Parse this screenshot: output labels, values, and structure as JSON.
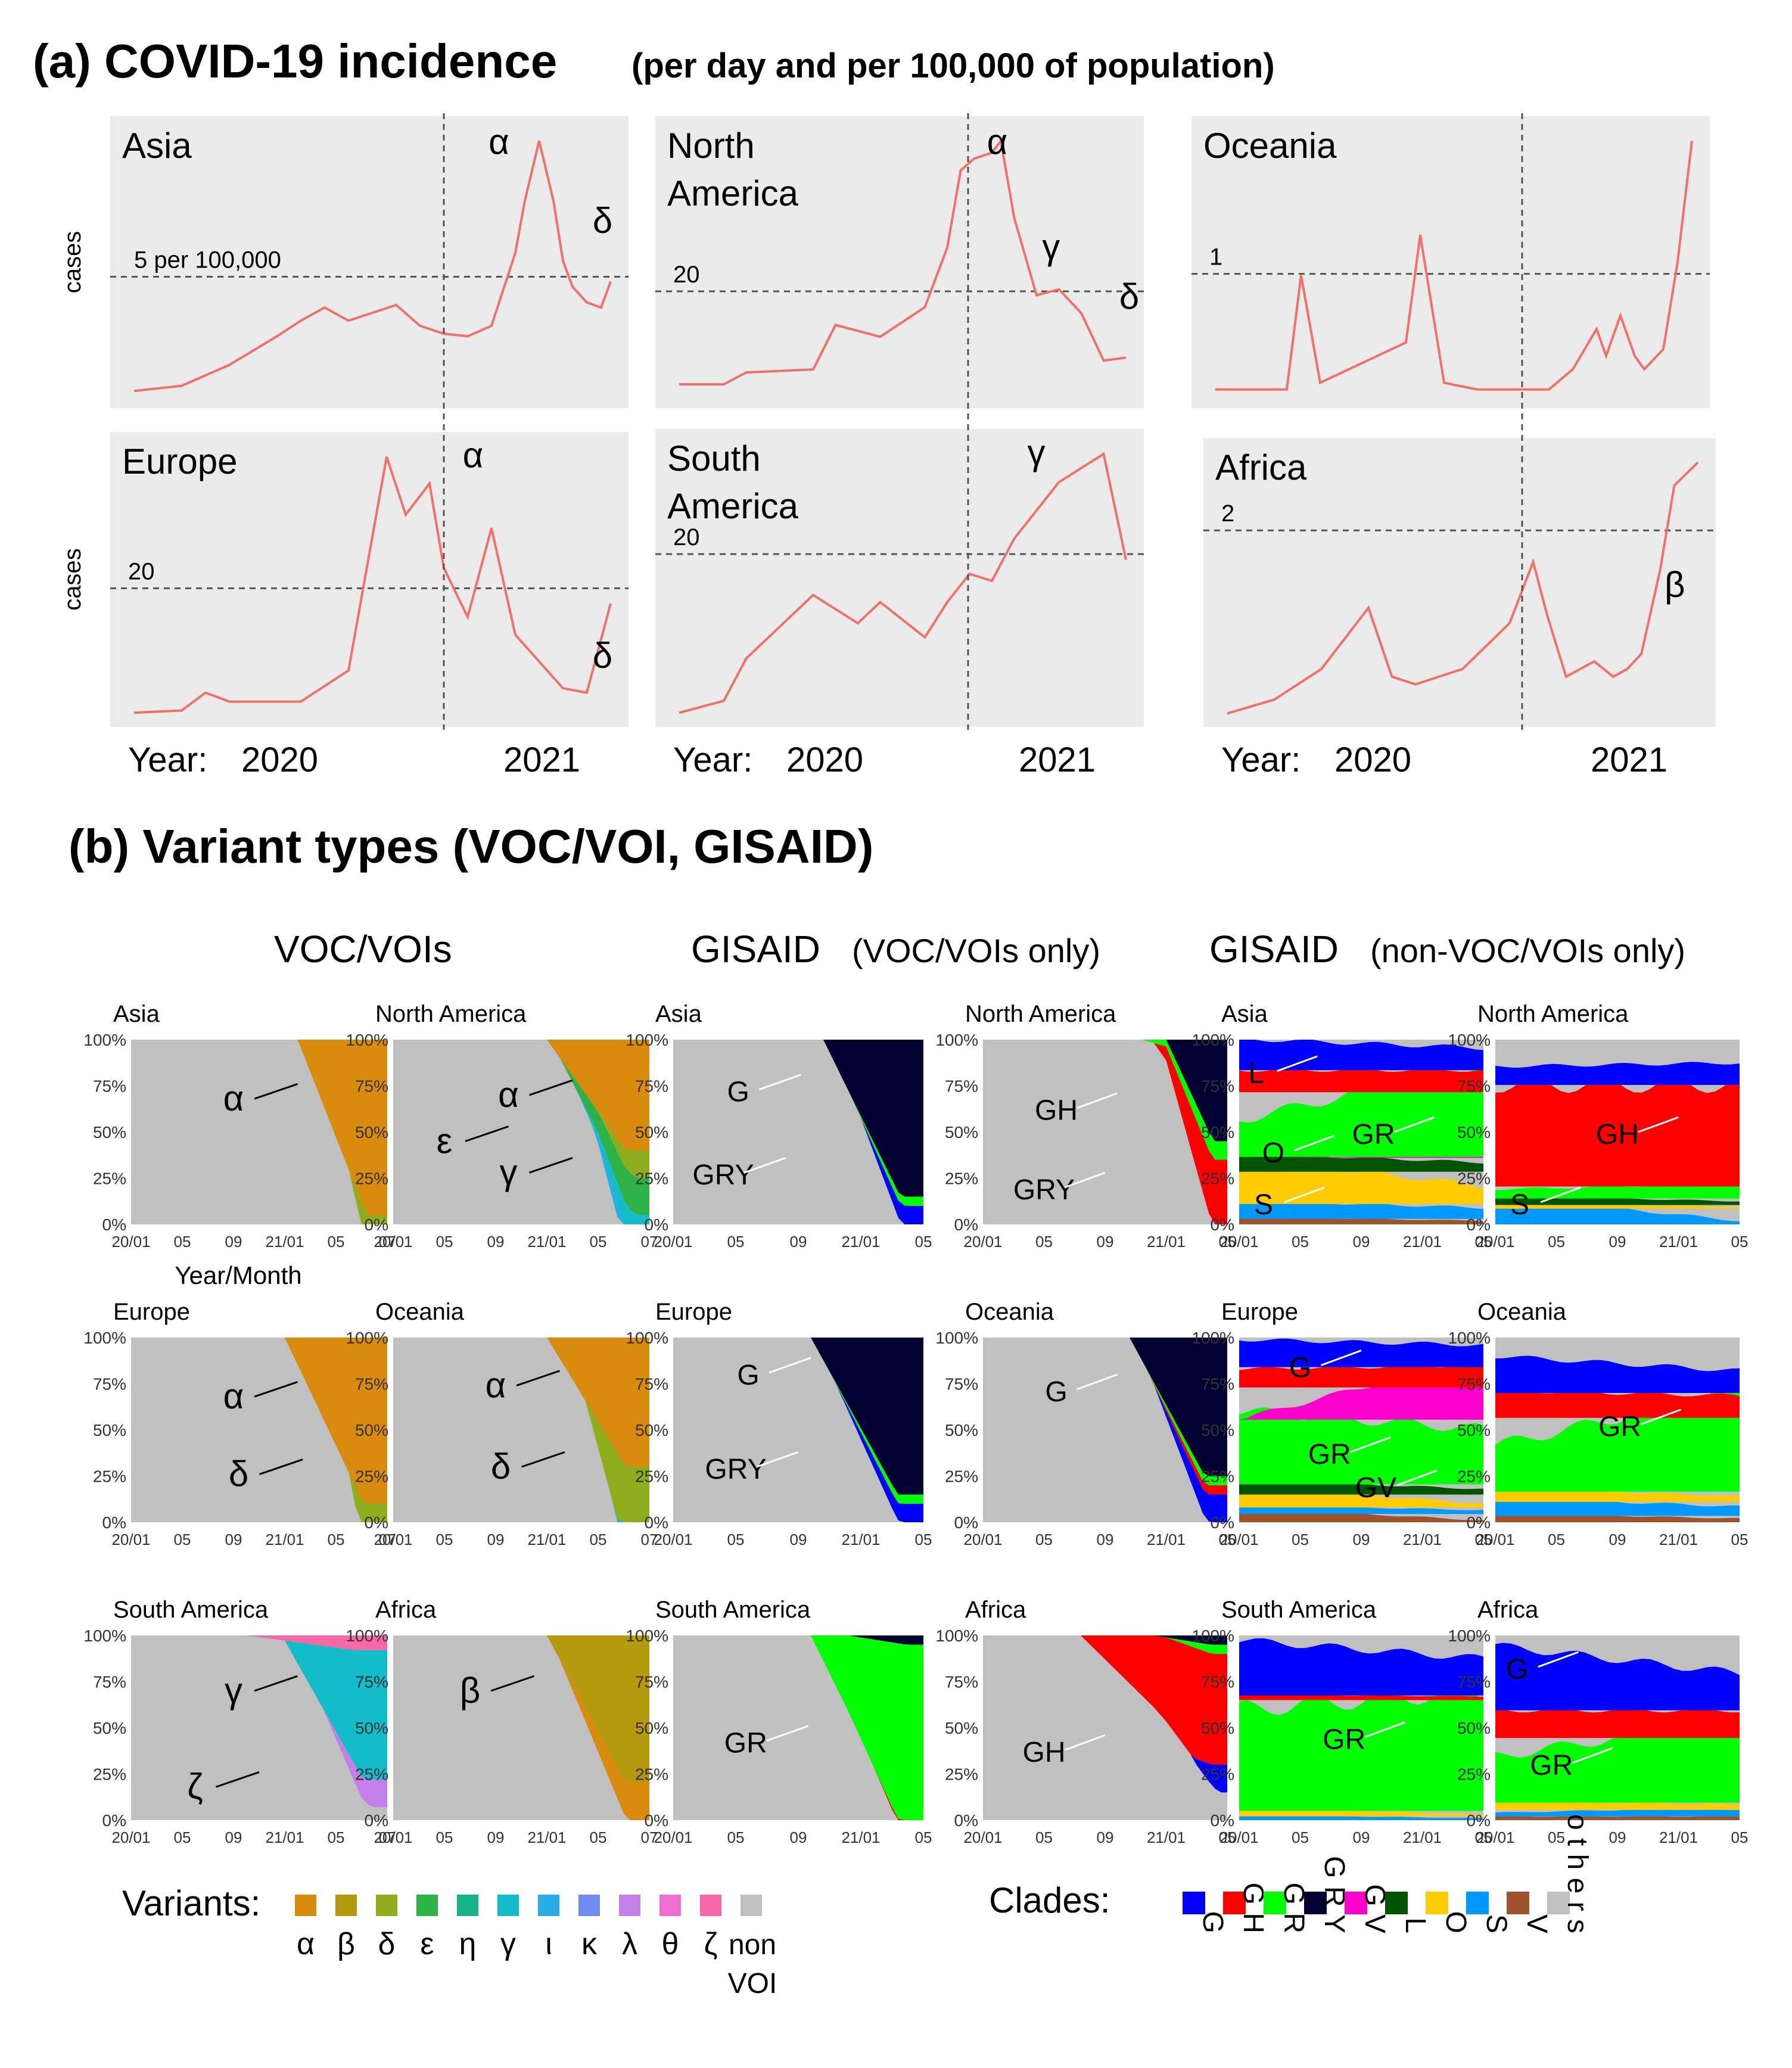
{
  "chart_data": {
    "type": "composite",
    "title_a": "(a) COVID-19 incidence",
    "title_a_sub": "(per day and per 100,000 of population)",
    "title_b": "(b) Variant types (VOC/VOI, GISAID)",
    "incidence": {
      "type": "line",
      "ylabel": "cases",
      "year_label": "Year:",
      "year_ticks": [
        "2020",
        "2021"
      ],
      "panels": [
        {
          "region": "Asia",
          "ref_label": "5 per 100,000",
          "ref_value": 5,
          "variant_labels": [
            "α",
            "δ"
          ],
          "x": [
            0,
            0.1,
            0.2,
            0.3,
            0.35,
            0.4,
            0.45,
            0.5,
            0.55,
            0.6,
            0.65,
            0.7,
            0.75,
            0.8,
            0.82,
            0.85,
            0.88,
            0.9,
            0.92,
            0.95,
            0.98,
            1
          ],
          "y": [
            0.2,
            0.4,
            1.2,
            2.3,
            2.9,
            3.4,
            2.9,
            3.2,
            3.5,
            2.7,
            2.4,
            2.3,
            2.7,
            5.5,
            7.5,
            9.8,
            7.5,
            5.2,
            4.2,
            3.6,
            3.4,
            4.4
          ]
        },
        {
          "region": "North America",
          "ref_label": "20",
          "ref_value": 20,
          "variant_labels": [
            "α",
            "γ",
            "δ"
          ],
          "x": [
            0,
            0.1,
            0.15,
            0.3,
            0.35,
            0.45,
            0.55,
            0.6,
            0.63,
            0.66,
            0.7,
            0.72,
            0.75,
            0.8,
            0.85,
            0.9,
            0.95,
            1
          ],
          "y": [
            2,
            2,
            4,
            4.5,
            12,
            10,
            15,
            25,
            38,
            40,
            41,
            43,
            30,
            17,
            18,
            14,
            6,
            6.5
          ]
        },
        {
          "region": "Oceania",
          "ref_label": "1",
          "ref_value": 1,
          "variant_labels": [],
          "x": [
            0,
            0.15,
            0.18,
            0.22,
            0.4,
            0.43,
            0.48,
            0.55,
            0.7,
            0.75,
            0.8,
            0.82,
            0.85,
            0.88,
            0.9,
            0.94,
            0.97,
            1
          ],
          "y": [
            0.05,
            0.05,
            0.9,
            0.1,
            0.4,
            1.2,
            0.1,
            0.05,
            0.05,
            0.2,
            0.5,
            0.3,
            0.6,
            0.3,
            0.2,
            0.35,
            1.0,
            1.9
          ]
        },
        {
          "region": "Europe",
          "ref_label": "20",
          "ref_value": 20,
          "variant_labels": [
            "α",
            "δ"
          ],
          "x": [
            0,
            0.1,
            0.15,
            0.2,
            0.35,
            0.45,
            0.5,
            0.53,
            0.57,
            0.62,
            0.65,
            0.7,
            0.75,
            0.8,
            0.9,
            0.95,
            1
          ],
          "y": [
            0.5,
            1,
            5,
            3,
            3,
            10,
            40,
            58,
            45,
            52,
            33,
            22,
            42,
            18,
            6,
            5,
            25
          ]
        },
        {
          "region": "South America",
          "ref_label": "20",
          "ref_value": 20,
          "variant_labels": [
            "γ"
          ],
          "x": [
            0,
            0.1,
            0.15,
            0.25,
            0.3,
            0.4,
            0.45,
            0.55,
            0.6,
            0.65,
            0.7,
            0.75,
            0.8,
            0.85,
            0.9,
            0.95,
            1
          ],
          "y": [
            0.3,
            2,
            8,
            14,
            17,
            13,
            16,
            11,
            16,
            20,
            19,
            25,
            29,
            33,
            35,
            37,
            22
          ]
        },
        {
          "region": "Africa",
          "ref_label": "2",
          "ref_value": 2,
          "variant_labels": [
            "β"
          ],
          "x": [
            0,
            0.1,
            0.2,
            0.3,
            0.35,
            0.4,
            0.5,
            0.55,
            0.6,
            0.65,
            0.68,
            0.72,
            0.78,
            0.82,
            0.85,
            0.88,
            0.92,
            0.95,
            1
          ],
          "y": [
            0.02,
            0.2,
            0.6,
            1.4,
            0.5,
            0.4,
            0.6,
            0.9,
            1.2,
            2.0,
            1.3,
            0.5,
            0.7,
            0.5,
            0.6,
            0.8,
            1.9,
            3.0,
            3.3
          ]
        }
      ]
    },
    "variants": {
      "type": "area",
      "group_titles": [
        "VOC/VOIs",
        "GISAID",
        "(VOC/VOIs only)",
        "GISAID",
        "(non-VOC/VOIs only)"
      ],
      "y_ticks": [
        "100%",
        "75%",
        "50%",
        "25%",
        "0%"
      ],
      "x_ticks_7": [
        "20/01",
        "05",
        "09",
        "21/01",
        "05",
        "07"
      ],
      "x_ticks_6": [
        "20/01",
        "05",
        "09",
        "21/01",
        "05"
      ],
      "xlabel": "Year/Month",
      "row_regions": [
        [
          "Asia",
          "North America"
        ],
        [
          "Europe",
          "Oceania"
        ],
        [
          "South America",
          "Africa"
        ]
      ],
      "voc_panels": [
        {
          "region": "Asia",
          "labels": [
            "α"
          ],
          "layers": [
            {
              "key": "alpha",
              "start": 0.65,
              "grow": 0.95
            },
            {
              "key": "delta",
              "start": 0.85,
              "grow": 0.3
            },
            {
              "key": "iota",
              "start": 0.88,
              "grow": 0.1
            }
          ]
        },
        {
          "region": "North America",
          "labels": [
            "α",
            "ε",
            "γ"
          ],
          "layers": [
            {
              "key": "alpha",
              "start": 0.6,
              "grow": 0.6
            },
            {
              "key": "delta",
              "start": 0.8,
              "grow": 0.15
            },
            {
              "key": "eps",
              "start": 0.65,
              "grow": 0.2
            },
            {
              "key": "gamma",
              "start": 0.78,
              "grow": 0.2
            },
            {
              "key": "iota",
              "start": 0.72,
              "grow": 0.1
            }
          ]
        },
        {
          "region": "Europe",
          "labels": [
            "α",
            "δ"
          ],
          "layers": [
            {
              "key": "alpha",
              "start": 0.6,
              "grow": 0.9
            },
            {
              "key": "delta",
              "start": 0.85,
              "grow": 0.5
            }
          ]
        },
        {
          "region": "Oceania",
          "labels": [
            "α",
            "δ"
          ],
          "layers": [
            {
              "key": "alpha",
              "start": 0.6,
              "grow": 0.7
            },
            {
              "key": "delta",
              "start": 0.75,
              "grow": 0.55
            },
            {
              "key": "iota",
              "start": 0.85,
              "grow": 0.15
            }
          ]
        },
        {
          "region": "South America",
          "labels": [
            "γ",
            "ζ"
          ],
          "layers": [
            {
              "key": "zeta",
              "start": 0.45,
              "grow": 0.08
            },
            {
              "key": "gamma",
              "start": 0.6,
              "grow": 0.7
            },
            {
              "key": "lambda",
              "start": 0.75,
              "grow": 0.15
            }
          ]
        },
        {
          "region": "Africa",
          "labels": [
            "β"
          ],
          "layers": [
            {
              "key": "beta",
              "start": 0.6,
              "grow": 0.8
            },
            {
              "key": "alpha",
              "start": 0.65,
              "grow": 0.2
            }
          ]
        }
      ],
      "gisaid_voc_panels": [
        {
          "region": "Asia",
          "labels": [
            "G",
            "GRY"
          ],
          "layers": [
            {
              "key": "GRY",
              "start": 0.6,
              "grow": 0.85
            },
            {
              "key": "GR",
              "start": 0.7,
              "grow": 0.05
            },
            {
              "key": "G",
              "start": 0.75,
              "grow": 0.12
            }
          ]
        },
        {
          "region": "North America",
          "labels": [
            "GH",
            "GRY"
          ],
          "layers": [
            {
              "key": "GRY",
              "start": 0.75,
              "grow": 0.55
            },
            {
              "key": "GR",
              "start": 0.65,
              "grow": 0.1
            },
            {
              "key": "GH",
              "start": 0.7,
              "grow": 0.35
            }
          ]
        },
        {
          "region": "Europe",
          "labels": [
            "G",
            "GRY"
          ],
          "layers": [
            {
              "key": "GRY",
              "start": 0.55,
              "grow": 0.85
            },
            {
              "key": "GR",
              "start": 0.62,
              "grow": 0.05
            },
            {
              "key": "G",
              "start": 0.65,
              "grow": 0.1
            }
          ]
        },
        {
          "region": "Oceania",
          "labels": [
            "G"
          ],
          "layers": [
            {
              "key": "GRY",
              "start": 0.6,
              "grow": 0.75
            },
            {
              "key": "GR",
              "start": 0.65,
              "grow": 0.05
            },
            {
              "key": "GH",
              "start": 0.68,
              "grow": 0.05
            },
            {
              "key": "G",
              "start": 0.7,
              "grow": 0.15
            }
          ]
        },
        {
          "region": "South America",
          "labels": [
            "GR"
          ],
          "layers": [
            {
              "key": "GRY",
              "start": 0.7,
              "grow": 0.05
            },
            {
              "key": "GR",
              "start": 0.55,
              "grow": 0.95
            },
            {
              "key": "GH",
              "start": 0.8,
              "grow": 0.03
            }
          ]
        },
        {
          "region": "Africa",
          "labels": [
            "GH"
          ],
          "layers": [
            {
              "key": "GRY",
              "start": 0.7,
              "grow": 0.05
            },
            {
              "key": "GR",
              "start": 0.75,
              "grow": 0.05
            },
            {
              "key": "GH",
              "start": 0.4,
              "grow": 0.6
            },
            {
              "key": "G",
              "start": 0.85,
              "grow": 0.15
            }
          ]
        }
      ],
      "gisaid_nonvoc_panels": [
        {
          "region": "Asia",
          "labels": [
            "L",
            "O",
            "S",
            "GR"
          ],
          "bands": [
            [
              "V",
              0.04,
              0.02
            ],
            [
              "S",
              0.1,
              0.06
            ],
            [
              "O",
              0.25,
              0.1
            ],
            [
              "L",
              0.1,
              0.05
            ],
            [
              "GV",
              0.0,
              0.01
            ],
            [
              "GR",
              0.2,
              0.5
            ],
            [
              "GH",
              0.12,
              0.12
            ],
            [
              "G",
              0.17,
              0.12
            ]
          ]
        },
        {
          "region": "North America",
          "labels": [
            "S",
            "GH"
          ],
          "bands": [
            [
              "S",
              0.15,
              0.02
            ],
            [
              "O",
              0.03,
              0.01
            ],
            [
              "L",
              0.05,
              0.02
            ],
            [
              "GR",
              0.05,
              0.08
            ],
            [
              "GH",
              0.55,
              0.55
            ],
            [
              "G",
              0.1,
              0.12
            ]
          ]
        },
        {
          "region": "Europe",
          "labels": [
            "G",
            "GR",
            "GV"
          ],
          "bands": [
            [
              "V",
              0.08,
              0.01
            ],
            [
              "S",
              0.05,
              0.02
            ],
            [
              "O",
              0.12,
              0.02
            ],
            [
              "L",
              0.08,
              0.03
            ],
            [
              "GR",
              0.4,
              0.3
            ],
            [
              "GV",
              0.0,
              0.35
            ],
            [
              "GH",
              0.1,
              0.12
            ],
            [
              "G",
              0.15,
              0.12
            ]
          ]
        },
        {
          "region": "Oceania",
          "labels": [
            "GR"
          ],
          "bands": [
            [
              "V",
              0.05,
              0.02
            ],
            [
              "S",
              0.1,
              0.05
            ],
            [
              "O",
              0.08,
              0.03
            ],
            [
              "GR",
              0.25,
              0.55
            ],
            [
              "GH",
              0.15,
              0.12
            ],
            [
              "G",
              0.2,
              0.12
            ]
          ]
        },
        {
          "region": "South America",
          "labels": [
            "GR"
          ],
          "bands": [
            [
              "S",
              0.03,
              0.01
            ],
            [
              "O",
              0.05,
              0.01
            ],
            [
              "GR",
              0.55,
              0.65
            ],
            [
              "GH",
              0.03,
              0.02
            ],
            [
              "G",
              0.3,
              0.2
            ]
          ]
        },
        {
          "region": "Africa",
          "labels": [
            "G",
            "GR"
          ],
          "bands": [
            [
              "V",
              0.02,
              0.02
            ],
            [
              "S",
              0.02,
              0.05
            ],
            [
              "O",
              0.05,
              0.03
            ],
            [
              "GR",
              0.25,
              0.45
            ],
            [
              "GH",
              0.15,
              0.15
            ],
            [
              "G",
              0.35,
              0.2
            ]
          ]
        }
      ]
    },
    "variant_legend": {
      "title": "Variants:",
      "items": [
        {
          "symbol": "α",
          "color": "#d88b0c"
        },
        {
          "symbol": "β",
          "color": "#b59a10"
        },
        {
          "symbol": "δ",
          "color": "#8ead1c"
        },
        {
          "symbol": "ε",
          "color": "#2db245"
        },
        {
          "symbol": "η",
          "color": "#19b38a"
        },
        {
          "symbol": "γ",
          "color": "#12bcc8"
        },
        {
          "symbol": "ι",
          "color": "#27aee8"
        },
        {
          "symbol": "κ",
          "color": "#6f8cf0"
        },
        {
          "symbol": "λ",
          "color": "#c57fe9"
        },
        {
          "symbol": "θ",
          "color": "#ef6fd0"
        },
        {
          "symbol": "ζ",
          "color": "#f768a8"
        },
        {
          "symbol": "non VOI",
          "color": "#c0c0c0"
        }
      ]
    },
    "clade_legend": {
      "title": "Clades:",
      "items": [
        {
          "label": "G",
          "color": "#0000ff"
        },
        {
          "label": "GH",
          "color": "#ff0000"
        },
        {
          "label": "GR",
          "color": "#00ff00"
        },
        {
          "label": "GRY",
          "color": "#000033"
        },
        {
          "label": "GV",
          "color": "#ff00cc"
        },
        {
          "label": "L",
          "color": "#005500"
        },
        {
          "label": "O",
          "color": "#ffcc00"
        },
        {
          "label": "S",
          "color": "#0099ff"
        },
        {
          "label": "V",
          "color": "#a0522d"
        },
        {
          "label": "others",
          "color": "#c0c0c0"
        }
      ]
    }
  }
}
